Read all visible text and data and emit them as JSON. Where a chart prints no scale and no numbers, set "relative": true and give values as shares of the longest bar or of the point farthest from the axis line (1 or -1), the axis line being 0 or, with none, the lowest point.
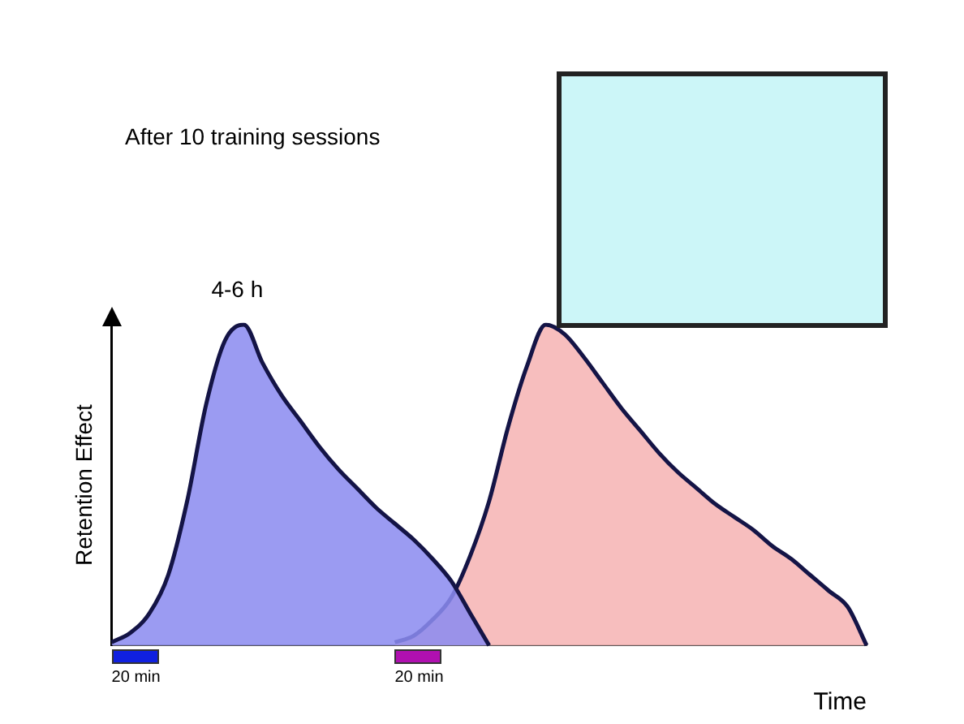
{
  "chart_data": {
    "type": "area",
    "title": "After 10 training sessions",
    "xlabel": "Time",
    "ylabel": "Retention Effect",
    "relative": true,
    "legend": false,
    "grid": false,
    "categories": [
      null,
      null,
      null,
      null,
      null,
      null,
      null,
      null,
      null,
      null,
      null,
      null,
      null,
      null,
      null,
      null,
      null,
      null,
      null,
      null,
      null,
      null,
      null,
      null,
      null,
      null,
      null,
      null,
      null,
      null,
      null,
      null,
      null,
      null,
      null,
      null,
      null,
      null,
      null,
      null,
      null
    ],
    "series": [
      {
        "color": "#8c8cf0",
        "values": [
          0.01,
          0.04,
          0.1,
          0.22,
          0.45,
          0.75,
          0.95,
          1,
          0.88,
          0.78,
          0.7,
          0.62,
          0.55,
          0.49,
          0.43,
          0.38,
          0.33,
          0.27,
          0.2,
          0.1,
          0,
          null,
          null,
          null,
          null,
          null,
          null,
          null,
          null,
          null,
          null,
          null,
          null,
          null,
          null,
          null,
          null,
          null,
          null,
          null,
          null
        ]
      },
      {
        "color": "#f6b4b4",
        "values": [
          null,
          null,
          null,
          null,
          null,
          null,
          null,
          null,
          null,
          null,
          null,
          null,
          null,
          null,
          null,
          0.01,
          0.03,
          0.08,
          0.15,
          0.28,
          0.45,
          0.68,
          0.87,
          1,
          0.97,
          0.9,
          0.82,
          0.74,
          0.67,
          0.6,
          0.54,
          0.49,
          0.44,
          0.4,
          0.36,
          0.31,
          0.27,
          0.22,
          0.17,
          0.12,
          0
        ]
      }
    ],
    "annotations": [
      "4-6 h",
      "20 min",
      "20 min"
    ]
  }
}
